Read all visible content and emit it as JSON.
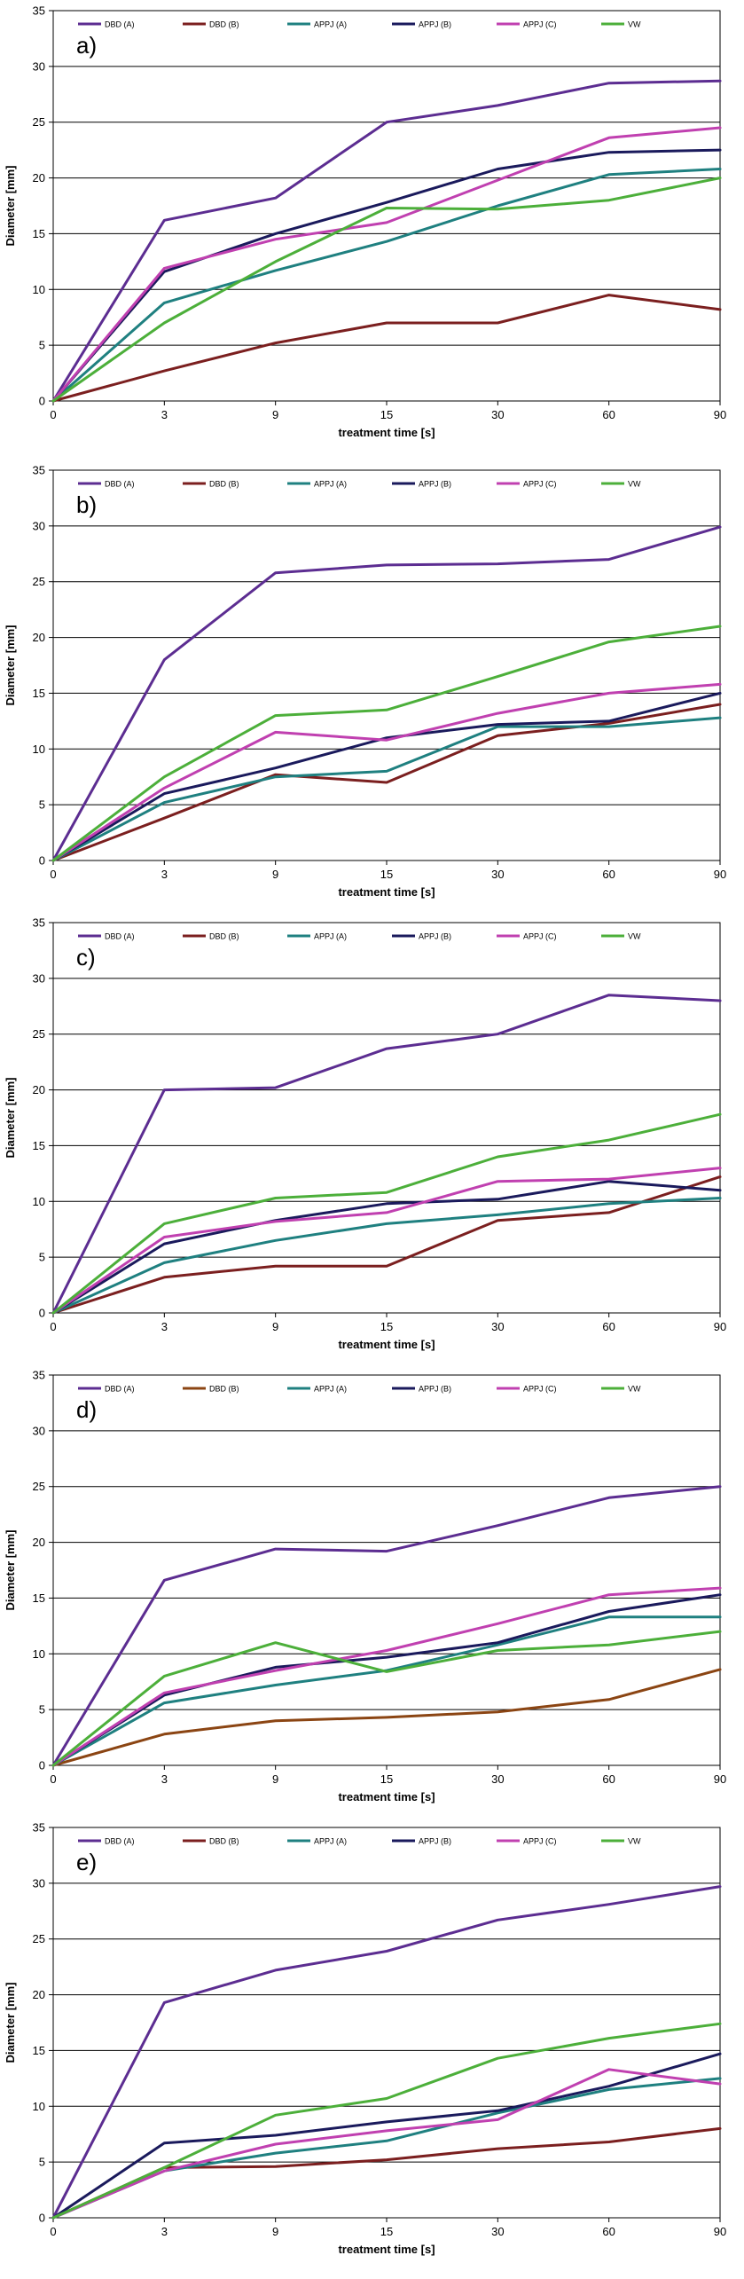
{
  "chart_data": [
    {
      "panel_label": "a)",
      "type": "line",
      "categories": [
        "0",
        "3",
        "9",
        "15",
        "30",
        "60",
        "90"
      ],
      "xlabel": "treatment time [s]",
      "ylabel": "Diameter [mm]",
      "ylim": [
        0,
        35
      ],
      "yticks": [
        "0",
        "5",
        "10",
        "15",
        "20",
        "25",
        "30",
        "35"
      ],
      "grid": true,
      "legend_position": "top",
      "series": [
        {
          "name": "DBD (A)",
          "color": "#5c2d91",
          "values": [
            0,
            16.2,
            18.2,
            25,
            26.5,
            28.5,
            28.7
          ]
        },
        {
          "name": "DBD (B)",
          "color": "#7b1f1f",
          "values": [
            0,
            2.7,
            5.2,
            7,
            7,
            9.5,
            8.2
          ]
        },
        {
          "name": "APPJ (A)",
          "color": "#1f8080",
          "values": [
            0,
            8.8,
            11.7,
            14.3,
            17.5,
            20.3,
            20.8
          ]
        },
        {
          "name": "APPJ (B)",
          "color": "#1a1a5c",
          "values": [
            0,
            11.6,
            15,
            17.8,
            20.8,
            22.3,
            22.5
          ]
        },
        {
          "name": "APPJ (C)",
          "color": "#c040b0",
          "values": [
            0,
            11.9,
            14.5,
            16,
            19.8,
            23.6,
            24.5
          ]
        },
        {
          "name": "VW",
          "color": "#4caf3a",
          "values": [
            0,
            7,
            12.5,
            17.3,
            17.2,
            18,
            20
          ]
        }
      ]
    },
    {
      "panel_label": "b)",
      "type": "line",
      "categories": [
        "0",
        "3",
        "9",
        "15",
        "30",
        "60",
        "90"
      ],
      "xlabel": "treatment time [s]",
      "ylabel": "Diameter [mm]",
      "ylim": [
        0,
        35
      ],
      "yticks": [
        "0",
        "5",
        "10",
        "15",
        "20",
        "25",
        "30",
        "35"
      ],
      "grid": true,
      "legend_position": "top",
      "series": [
        {
          "name": "DBD (A)",
          "color": "#5c2d91",
          "values": [
            0,
            18,
            25.8,
            26.5,
            26.6,
            27,
            29.9
          ]
        },
        {
          "name": "DBD (B)",
          "color": "#7b1f1f",
          "values": [
            0,
            3.8,
            7.7,
            7,
            11.2,
            12.3,
            14
          ]
        },
        {
          "name": "APPJ (A)",
          "color": "#1f8080",
          "values": [
            0,
            5.2,
            7.5,
            8,
            12,
            12,
            12.8
          ]
        },
        {
          "name": "APPJ (B)",
          "color": "#1a1a5c",
          "values": [
            0,
            6,
            8.3,
            11,
            12.2,
            12.5,
            15
          ]
        },
        {
          "name": "APPJ (C)",
          "color": "#c040b0",
          "values": [
            0,
            6.5,
            11.5,
            10.8,
            13.2,
            15,
            15.8
          ]
        },
        {
          "name": "VW",
          "color": "#4caf3a",
          "values": [
            0,
            7.5,
            13,
            13.5,
            16.5,
            19.6,
            21
          ]
        }
      ]
    },
    {
      "panel_label": "c)",
      "type": "line",
      "categories": [
        "0",
        "3",
        "9",
        "15",
        "30",
        "60",
        "90"
      ],
      "xlabel": "treatment time [s]",
      "ylabel": "Diameter [mm]",
      "ylim": [
        0,
        35
      ],
      "yticks": [
        "0",
        "5",
        "10",
        "15",
        "20",
        "25",
        "30",
        "35"
      ],
      "grid": true,
      "legend_position": "top",
      "series": [
        {
          "name": "DBD (A)",
          "color": "#5c2d91",
          "values": [
            0,
            20,
            20.2,
            23.7,
            25,
            28.5,
            28
          ]
        },
        {
          "name": "DBD (B)",
          "color": "#7b1f1f",
          "values": [
            0,
            3.2,
            4.2,
            4.2,
            8.3,
            9,
            12.2
          ]
        },
        {
          "name": "APPJ (A)",
          "color": "#1f8080",
          "values": [
            0,
            4.5,
            6.5,
            8,
            8.8,
            9.8,
            10.3
          ]
        },
        {
          "name": "APPJ (B)",
          "color": "#1a1a5c",
          "values": [
            0,
            6.2,
            8.3,
            9.8,
            10.2,
            11.8,
            11
          ]
        },
        {
          "name": "APPJ (C)",
          "color": "#c040b0",
          "values": [
            0,
            6.8,
            8.2,
            9,
            11.8,
            12,
            13
          ]
        },
        {
          "name": "VW",
          "color": "#4caf3a",
          "values": [
            0,
            8,
            10.3,
            10.8,
            14,
            15.5,
            17.8
          ]
        }
      ]
    },
    {
      "panel_label": "d)",
      "type": "line",
      "categories": [
        "0",
        "3",
        "9",
        "15",
        "30",
        "60",
        "90"
      ],
      "xlabel": "treatment time [s]",
      "ylabel": "Diameter [mm]",
      "ylim": [
        0,
        35
      ],
      "yticks": [
        "0",
        "5",
        "10",
        "15",
        "20",
        "25",
        "30",
        "35"
      ],
      "grid": true,
      "legend_position": "top",
      "series": [
        {
          "name": "DBD (A)",
          "color": "#5c2d91",
          "values": [
            0,
            16.6,
            19.4,
            19.2,
            21.5,
            24,
            25
          ]
        },
        {
          "name": "DBD (B)",
          "color": "#8b4513",
          "values": [
            0,
            2.8,
            4,
            4.3,
            4.8,
            5.9,
            8.6
          ]
        },
        {
          "name": "APPJ (A)",
          "color": "#1f8080",
          "values": [
            0,
            5.6,
            7.2,
            8.5,
            10.8,
            13.3,
            13.3
          ]
        },
        {
          "name": "APPJ (B)",
          "color": "#1a1a5c",
          "values": [
            0,
            6.3,
            8.8,
            9.7,
            11,
            13.8,
            15.3
          ]
        },
        {
          "name": "APPJ (C)",
          "color": "#c040b0",
          "values": [
            0,
            6.5,
            8.5,
            10.3,
            12.7,
            15.3,
            15.9
          ]
        },
        {
          "name": "VW",
          "color": "#4caf3a",
          "values": [
            0,
            8,
            11,
            8.4,
            10.3,
            10.8,
            12
          ]
        }
      ]
    },
    {
      "panel_label": "e)",
      "type": "line",
      "categories": [
        "0",
        "3",
        "9",
        "15",
        "30",
        "60",
        "90"
      ],
      "xlabel": "treatment time [s]",
      "ylabel": "Diameter [mm]",
      "ylim": [
        0,
        35
      ],
      "yticks": [
        "0",
        "5",
        "10",
        "15",
        "20",
        "25",
        "30",
        "35"
      ],
      "grid": true,
      "legend_position": "top",
      "series": [
        {
          "name": "DBD (A)",
          "color": "#5c2d91",
          "values": [
            0,
            19.3,
            22.2,
            23.9,
            26.7,
            28.1,
            29.7
          ]
        },
        {
          "name": "DBD (B)",
          "color": "#7b1f1f",
          "values": [
            0,
            4.5,
            4.6,
            5.2,
            6.2,
            6.8,
            8
          ]
        },
        {
          "name": "APPJ (A)",
          "color": "#1f8080",
          "values": [
            0,
            4.2,
            5.8,
            6.9,
            9.4,
            11.5,
            12.5
          ]
        },
        {
          "name": "APPJ (B)",
          "color": "#1a1a5c",
          "values": [
            0,
            6.7,
            7.4,
            8.6,
            9.6,
            11.8,
            14.7
          ]
        },
        {
          "name": "APPJ (C)",
          "color": "#c040b0",
          "values": [
            0,
            4.2,
            6.6,
            7.8,
            8.8,
            13.3,
            12
          ]
        },
        {
          "name": "VW",
          "color": "#4caf3a",
          "values": [
            0,
            4.5,
            9.2,
            10.7,
            14.3,
            16.1,
            17.4
          ]
        }
      ]
    }
  ]
}
